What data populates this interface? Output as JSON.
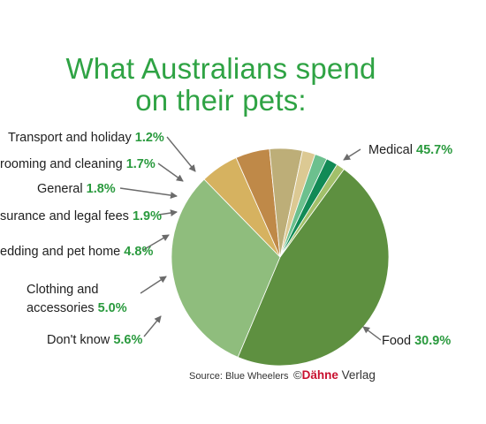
{
  "chart_data": {
    "type": "pie",
    "title_line1": "What Australians spend",
    "title_line2": "on their pets:",
    "slices": [
      {
        "label": "Medical",
        "value": 45.7,
        "display": "45.7%",
        "color": "#5e9040"
      },
      {
        "label": "Food",
        "value": 30.9,
        "display": "30.9%",
        "color": "#8fbd7d"
      },
      {
        "label": "Don't know",
        "value": 5.6,
        "display": "5.6%",
        "color": "#d6b260"
      },
      {
        "label": "accessories",
        "label_prefix": "Clothing and",
        "value": 5.0,
        "display": "5.0%",
        "color": "#bf8948"
      },
      {
        "label": "edding and pet home",
        "value": 4.8,
        "display": "4.8%",
        "color": "#bdae78"
      },
      {
        "label": "surance and legal fees",
        "value": 1.9,
        "display": "1.9%",
        "color": "#dcc993"
      },
      {
        "label": "General",
        "value": 1.8,
        "display": "1.8%",
        "color": "#6cc08e"
      },
      {
        "label": "rooming and cleaning",
        "value": 1.7,
        "display": "1.7%",
        "color": "#128a56"
      },
      {
        "label": "Transport and holiday",
        "value": 1.2,
        "display": "1.2%",
        "color": "#a2c06a"
      }
    ]
  },
  "source": "Source: Blue Wheelers",
  "brand": {
    "copyright": "©",
    "name_red": "Dähne",
    "name_rest": " Verlag"
  },
  "colors": {
    "title": "#2fa344",
    "percent": "#2a9a3e",
    "arrow": "#6b6b6b",
    "brand_red": "#c8102e"
  }
}
